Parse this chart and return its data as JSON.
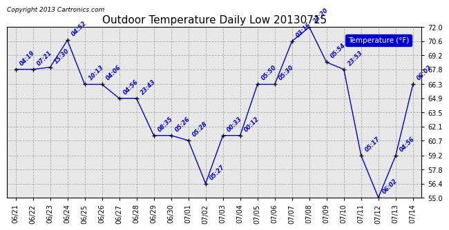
{
  "title": "Outdoor Temperature Daily Low 20130715",
  "copyright": "Copyright 2013 Cartronics.com",
  "legend_label": "Temperature (°F)",
  "dates": [
    "06/21",
    "06/22",
    "06/23",
    "06/24",
    "06/25",
    "06/26",
    "06/27",
    "06/28",
    "06/29",
    "06/30",
    "07/01",
    "07/02",
    "07/03",
    "07/04",
    "07/05",
    "07/06",
    "07/07",
    "07/08",
    "07/09",
    "07/10",
    "07/11",
    "07/12",
    "07/13",
    "07/14"
  ],
  "temps": [
    67.8,
    67.8,
    68.0,
    70.7,
    66.3,
    66.3,
    64.9,
    64.9,
    61.2,
    61.2,
    60.7,
    56.4,
    61.2,
    61.2,
    66.3,
    66.3,
    70.6,
    72.0,
    68.5,
    67.8,
    59.2,
    55.0,
    59.2,
    66.3
  ],
  "times": [
    "04:19",
    "07:21",
    "15:30",
    "04:52",
    "10:13",
    "04:06",
    "04:56",
    "23:43",
    "08:35",
    "05:26",
    "05:28",
    "05:27",
    "00:33",
    "00:12",
    "05:50",
    "05:30",
    "03:16",
    "23:20",
    "05:54",
    "23:53",
    "05:17",
    "06:02",
    "04:56",
    "06:02"
  ],
  "ylim": [
    55.0,
    72.0
  ],
  "yticks": [
    55.0,
    56.4,
    57.8,
    59.2,
    60.7,
    62.1,
    63.5,
    64.9,
    66.3,
    67.8,
    69.2,
    70.6,
    72.0
  ],
  "line_color": "#0000cc",
  "marker_color": "#000000",
  "bg_color": "#ffffff",
  "plot_bg_color": "#e8e8e8",
  "grid_color": "#aaaaaa",
  "title_color": "#000000",
  "label_color": "#0000cc",
  "copyright_color": "#000000",
  "legend_bg": "#0000cc",
  "legend_text": "#ffffff",
  "title_fontsize": 11,
  "tick_fontsize": 7,
  "label_fontsize": 6,
  "copyright_fontsize": 6.5
}
